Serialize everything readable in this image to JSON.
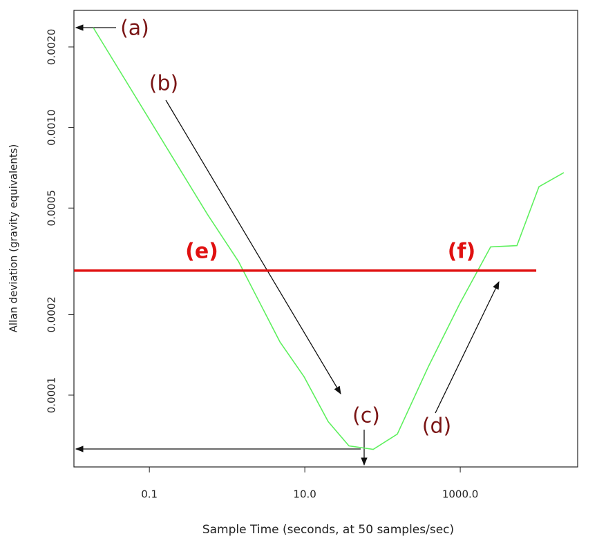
{
  "chart_data": {
    "type": "line",
    "x_label": "Sample Time (seconds, at 50 samples/sec)",
    "y_label": "Allan deviation (gravity equivalents)",
    "log_x": true,
    "log_y": true,
    "xlim": [
      0.0107,
      32400
    ],
    "ylim": [
      5.39e-05,
      0.00274
    ],
    "xticks": [
      0.1,
      {
        "value": 10,
        "label": "10.0"
      },
      {
        "value": 1000,
        "label": "1000.0"
      }
    ],
    "yticks": [
      {
        "value": 0.002,
        "label": "0.0020"
      },
      {
        "value": 0.001,
        "label": "0.0010"
      },
      {
        "value": 0.0005,
        "label": "0.0005"
      },
      {
        "value": 0.0002,
        "label": "0.0002"
      },
      {
        "value": 0.0001,
        "label": "0.0001"
      }
    ],
    "x": [
      0.019,
      0.558,
      1.4,
      4.79,
      9.8,
      20.0,
      37.0,
      75.9,
      155,
      390,
      980,
      2460,
      5360,
      10300,
      21500
    ],
    "series": [
      {
        "color": "#5ef05e",
        "values": [
          0.00236,
          0.000474,
          0.000316,
          0.000158,
          0.000117,
          7.96e-05,
          6.46e-05,
          6.27e-05,
          7.15e-05,
          0.000128,
          0.000219,
          0.000358,
          0.000362,
          0.000601,
          0.000678
        ]
      }
    ],
    "reference_line": {
      "value": 0.000292,
      "x_end": 9500,
      "color": "#e01010"
    },
    "annotations": [
      "(a)",
      "(b)",
      "(c)",
      "(d)",
      "(e)",
      "(f)"
    ]
  }
}
